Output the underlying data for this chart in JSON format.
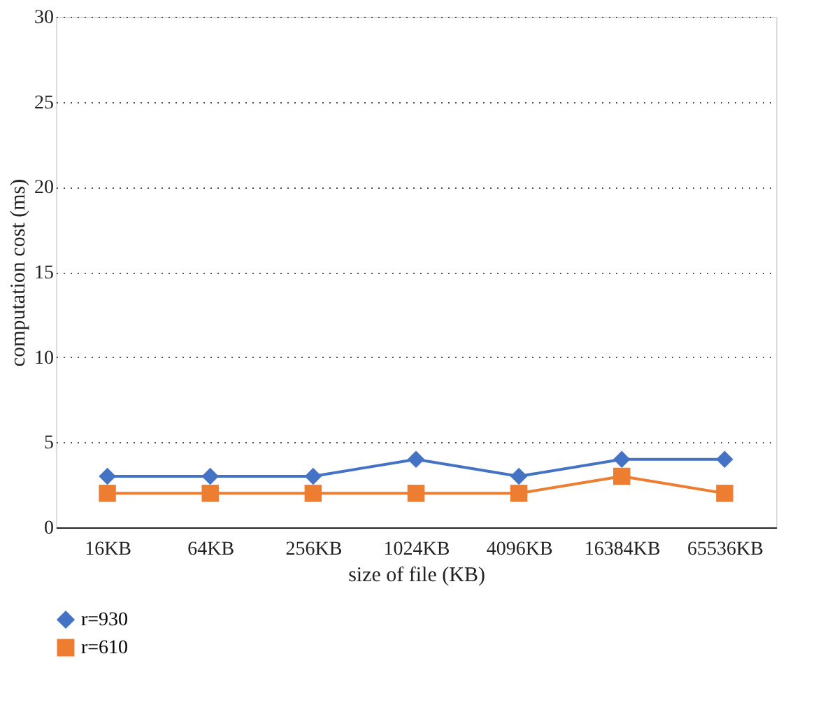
{
  "chart_data": {
    "type": "line",
    "xlabel": "size of file (KB)",
    "ylabel": "computation cost (ms)",
    "categories": [
      "16KB",
      "64KB",
      "256KB",
      "1024KB",
      "4096KB",
      "16384KB",
      "65536KB"
    ],
    "series": [
      {
        "name": "r=930",
        "color": "#4472c4",
        "marker": "diamond",
        "values": [
          3,
          3,
          3,
          4,
          3,
          4,
          4
        ]
      },
      {
        "name": "r=610",
        "color": "#ed7d31",
        "marker": "square",
        "values": [
          2,
          2,
          2,
          2,
          2,
          3,
          2
        ]
      }
    ],
    "ylim": [
      0,
      30
    ],
    "yticks": [
      0,
      5,
      10,
      15,
      20,
      25,
      30
    ],
    "grid": "y",
    "legend": "bottom",
    "line_style": "solid"
  }
}
